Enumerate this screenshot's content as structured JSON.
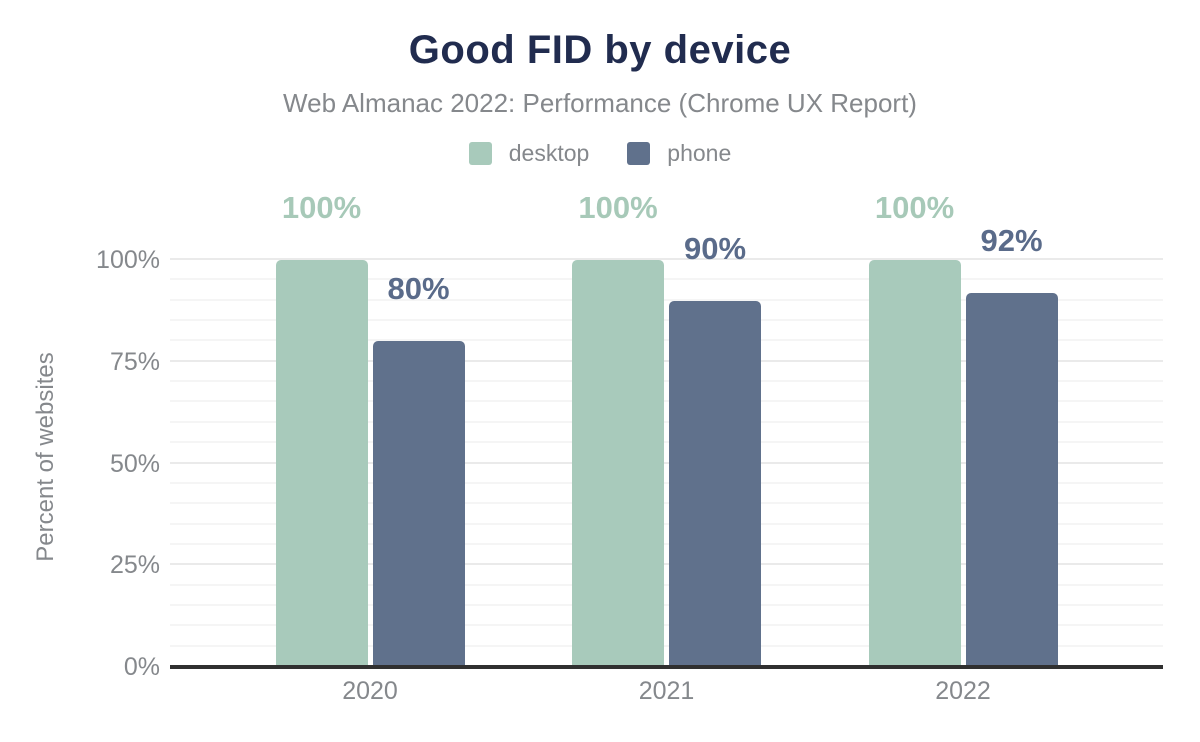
{
  "chart_data": {
    "type": "bar",
    "title": "Good FID by device",
    "subtitle": "Web Almanac 2022: Performance (Chrome UX Report)",
    "ylabel": "Percent of websites",
    "xlabel": "",
    "unit": "%",
    "categories": [
      "2020",
      "2021",
      "2022"
    ],
    "series": [
      {
        "name": "desktop",
        "color": "#a8cabb",
        "label_color": "#a7c9b8",
        "values": [
          100,
          100,
          100
        ]
      },
      {
        "name": "phone",
        "color": "#60718c",
        "label_color": "#5a6b8a",
        "values": [
          80,
          90,
          92
        ]
      }
    ],
    "ylim": [
      0,
      100
    ],
    "yticks": [
      0,
      25,
      50,
      75,
      100
    ],
    "ytick_suffix": "%",
    "grid": true,
    "grid_step": 5,
    "legend_position": "top-center"
  },
  "theme": {
    "page_background": "#ffffff",
    "title_color": "#212c4f",
    "muted_text_color": "#85888c",
    "axis_line_color": "#303030",
    "grid_minor_color": "#f5f5f5",
    "grid_major_color": "#eaeaea"
  }
}
